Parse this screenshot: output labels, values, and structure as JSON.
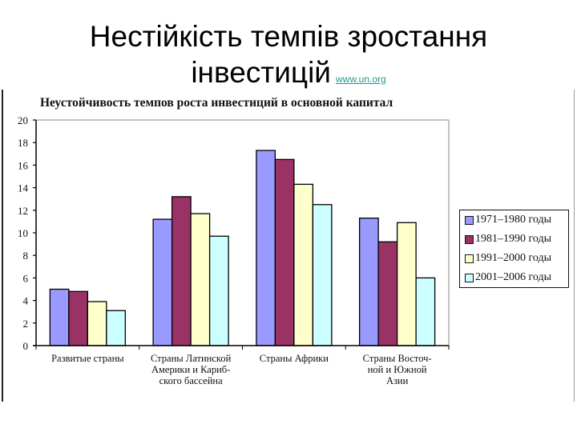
{
  "slide": {
    "title_line1": "Нестійкість темпів зростання",
    "title_line2": "інвестицій",
    "source_link": "www.un.org"
  },
  "chart_data": {
    "type": "bar",
    "title": "Неустойчивость темпов роста инвестиций в основной капитал",
    "xlabel": "",
    "ylabel": "",
    "ylim": [
      0,
      20
    ],
    "yticks": [
      0,
      2,
      4,
      6,
      8,
      10,
      12,
      14,
      16,
      18,
      20
    ],
    "grid": false,
    "legend_position": "right",
    "categories": [
      "Развитые страны",
      "Страны Латинской Америки и Кариб-ского бассейна",
      "Страны Африки",
      "Страны Восточ-ной и Южной Азии"
    ],
    "category_label_lines": [
      [
        "Развитые страны"
      ],
      [
        "Страны Латинской",
        "Америки и Кариб-",
        "ского бассейна"
      ],
      [
        "Страны Африки"
      ],
      [
        "Страны Восточ-",
        "ной и Южной",
        "Азии"
      ]
    ],
    "series": [
      {
        "name": "1971–1980 годы",
        "color": "#9999ff",
        "values": [
          5.0,
          11.2,
          17.3,
          11.3
        ]
      },
      {
        "name": "1981–1990 годы",
        "color": "#993366",
        "values": [
          4.8,
          13.2,
          16.5,
          9.2
        ]
      },
      {
        "name": "1991–2000 годы",
        "color": "#ffffcc",
        "values": [
          3.9,
          11.7,
          14.3,
          10.9
        ]
      },
      {
        "name": "2001–2006 годы",
        "color": "#ccffff",
        "values": [
          3.1,
          9.7,
          12.5,
          6.0
        ]
      }
    ]
  }
}
